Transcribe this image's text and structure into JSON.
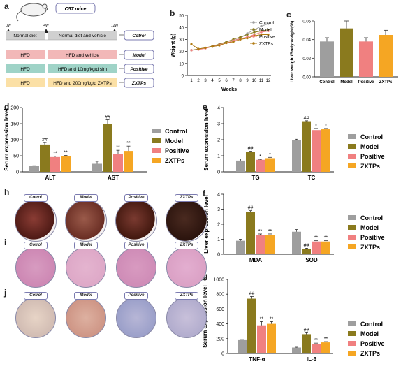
{
  "panels": {
    "a": "a",
    "b": "b",
    "c": "c",
    "d": "d",
    "e": "e",
    "f": "f",
    "g": "g",
    "h": "h",
    "i": "i",
    "j": "j"
  },
  "scheme": {
    "mice_label": "C57 mice",
    "weeks": [
      "0W",
      "4W",
      "12W"
    ],
    "rows": [
      {
        "left": "Normal diet",
        "right": "Normal diet and vehicle",
        "group": "Cotrol",
        "color": "#d9d9d9"
      },
      {
        "left": "HFD",
        "right": "HFD and vehicle",
        "group": "Model",
        "color": "#f2b8b8"
      },
      {
        "left": "HFD",
        "right": "HFD and 10mg/kg/d sim",
        "group": "Positive",
        "color": "#9fd3c7"
      },
      {
        "left": "HFD",
        "right": "HFD and 200mg/kg/d ZXTPs",
        "group": "ZXTPs",
        "color": "#fbe0a6"
      }
    ]
  },
  "colors": {
    "Control": "#9e9e9e",
    "Model": "#8a7a1e",
    "Positive": "#f08080",
    "ZXTPs": "#f5a623"
  },
  "legend": [
    "Control",
    "Model",
    "Positive",
    "ZXTPs"
  ],
  "chart_data": [
    {
      "id": "b",
      "type": "line",
      "xlabel": "Weeks",
      "ylabel": "Weight (g)",
      "x": [
        1,
        2,
        3,
        4,
        5,
        6,
        7,
        8,
        9,
        10,
        11,
        12
      ],
      "ylim": [
        0,
        50
      ],
      "yticks": [
        0,
        10,
        20,
        30,
        40,
        50
      ],
      "legend": [
        "Control",
        "Model",
        "Positive",
        "ZXTPs"
      ],
      "series": [
        {
          "name": "Control",
          "values": [
            21,
            22,
            23,
            24,
            25,
            27,
            29,
            31,
            35,
            38,
            41,
            43
          ]
        },
        {
          "name": "Model",
          "values": [
            21,
            22,
            23,
            24.5,
            26,
            28,
            30,
            32,
            34,
            36,
            37,
            38
          ]
        },
        {
          "name": "Positive",
          "values": [
            21,
            21.5,
            22.5,
            24,
            25.5,
            27,
            29,
            30.5,
            32,
            34,
            36,
            37
          ]
        },
        {
          "name": "ZXTPs",
          "values": [
            26,
            22,
            23,
            24,
            25,
            27,
            28,
            30,
            31,
            33,
            34,
            34
          ]
        }
      ]
    },
    {
      "id": "c",
      "type": "bar",
      "ylabel": "Liver weight/Body weight(%)",
      "categories": [
        "Control",
        "Model",
        "Positive",
        "ZXTPs"
      ],
      "values": [
        0.038,
        0.052,
        0.038,
        0.045
      ],
      "errors": [
        0.004,
        0.008,
        0.004,
        0.005
      ],
      "ylim": [
        0,
        0.06
      ],
      "yticks": [
        0,
        0.02,
        0.04,
        0.06
      ],
      "yticklabels": [
        "0.00",
        "0.02",
        "0.04",
        "0.06"
      ]
    },
    {
      "id": "d",
      "type": "bar",
      "ylabel": "Serum expression level",
      "categories": [
        "ALT",
        "AST"
      ],
      "ylim": [
        0,
        200
      ],
      "yticks": [
        0,
        50,
        100,
        150,
        200
      ],
      "series": [
        {
          "name": "Control",
          "values": [
            18,
            25
          ],
          "errors": [
            1,
            8
          ]
        },
        {
          "name": "Model",
          "values": [
            85,
            150
          ],
          "errors": [
            6,
            12
          ]
        },
        {
          "name": "Positive",
          "values": [
            46,
            55
          ],
          "errors": [
            3,
            12
          ]
        },
        {
          "name": "ZXTPs",
          "values": [
            48,
            65
          ],
          "errors": [
            3,
            15
          ]
        }
      ],
      "annotations": [
        [
          "",
          "##",
          "**",
          "**"
        ],
        [
          "",
          "##",
          "**",
          "**"
        ]
      ]
    },
    {
      "id": "e",
      "type": "bar",
      "ylabel": "Serum expression level",
      "categories": [
        "TG",
        "TC"
      ],
      "ylim": [
        0,
        4
      ],
      "yticks": [
        0,
        1,
        2,
        3,
        4
      ],
      "series": [
        {
          "name": "Control",
          "values": [
            0.7,
            2.0
          ],
          "errors": [
            0.1,
            0.03
          ]
        },
        {
          "name": "Model",
          "values": [
            1.25,
            3.15
          ],
          "errors": [
            0.03,
            0.03
          ]
        },
        {
          "name": "Positive",
          "values": [
            0.75,
            2.6
          ],
          "errors": [
            0.03,
            0.1
          ]
        },
        {
          "name": "ZXTPs",
          "values": [
            0.85,
            2.65
          ],
          "errors": [
            0.05,
            0.05
          ]
        }
      ],
      "annotations": [
        [
          "",
          "##",
          "*",
          "*"
        ],
        [
          "",
          "##",
          "*",
          "*"
        ]
      ]
    },
    {
      "id": "f",
      "type": "bar",
      "ylabel": "Liver expression level",
      "categories": [
        "MDA",
        "SOD"
      ],
      "ylim": [
        0,
        4
      ],
      "yticks": [
        0,
        1,
        2,
        3,
        4
      ],
      "series": [
        {
          "name": "Control",
          "values": [
            0.9,
            1.5
          ],
          "errors": [
            0.1,
            0.15
          ]
        },
        {
          "name": "Model",
          "values": [
            2.8,
            0.35
          ],
          "errors": [
            0.1,
            0.05
          ]
        },
        {
          "name": "Positive",
          "values": [
            1.3,
            0.85
          ],
          "errors": [
            0.05,
            0.05
          ]
        },
        {
          "name": "ZXTPs",
          "values": [
            1.3,
            0.85
          ],
          "errors": [
            0.05,
            0.05
          ]
        }
      ],
      "annotations": [
        [
          "",
          "##",
          "**",
          "**"
        ],
        [
          "",
          "##",
          "**",
          "**"
        ]
      ]
    },
    {
      "id": "g",
      "type": "bar",
      "ylabel": "Serum expression level",
      "categories": [
        "TNF-α",
        "IL-6"
      ],
      "ylim": [
        0,
        1000
      ],
      "yticks": [
        0,
        200,
        400,
        600,
        800,
        1000
      ],
      "series": [
        {
          "name": "Control",
          "values": [
            180,
            80
          ],
          "errors": [
            10,
            5
          ]
        },
        {
          "name": "Model",
          "values": [
            740,
            260
          ],
          "errors": [
            30,
            20
          ]
        },
        {
          "name": "Positive",
          "values": [
            380,
            125
          ],
          "errors": [
            50,
            15
          ]
        },
        {
          "name": "ZXTPs",
          "values": [
            400,
            150
          ],
          "errors": [
            30,
            10
          ]
        }
      ],
      "annotations": [
        [
          "",
          "##",
          "**",
          "**"
        ],
        [
          "",
          "##",
          "**",
          "**"
        ]
      ]
    }
  ],
  "histo_labels": [
    "Cotrol",
    "Model",
    "Positive",
    "ZXTPs"
  ]
}
